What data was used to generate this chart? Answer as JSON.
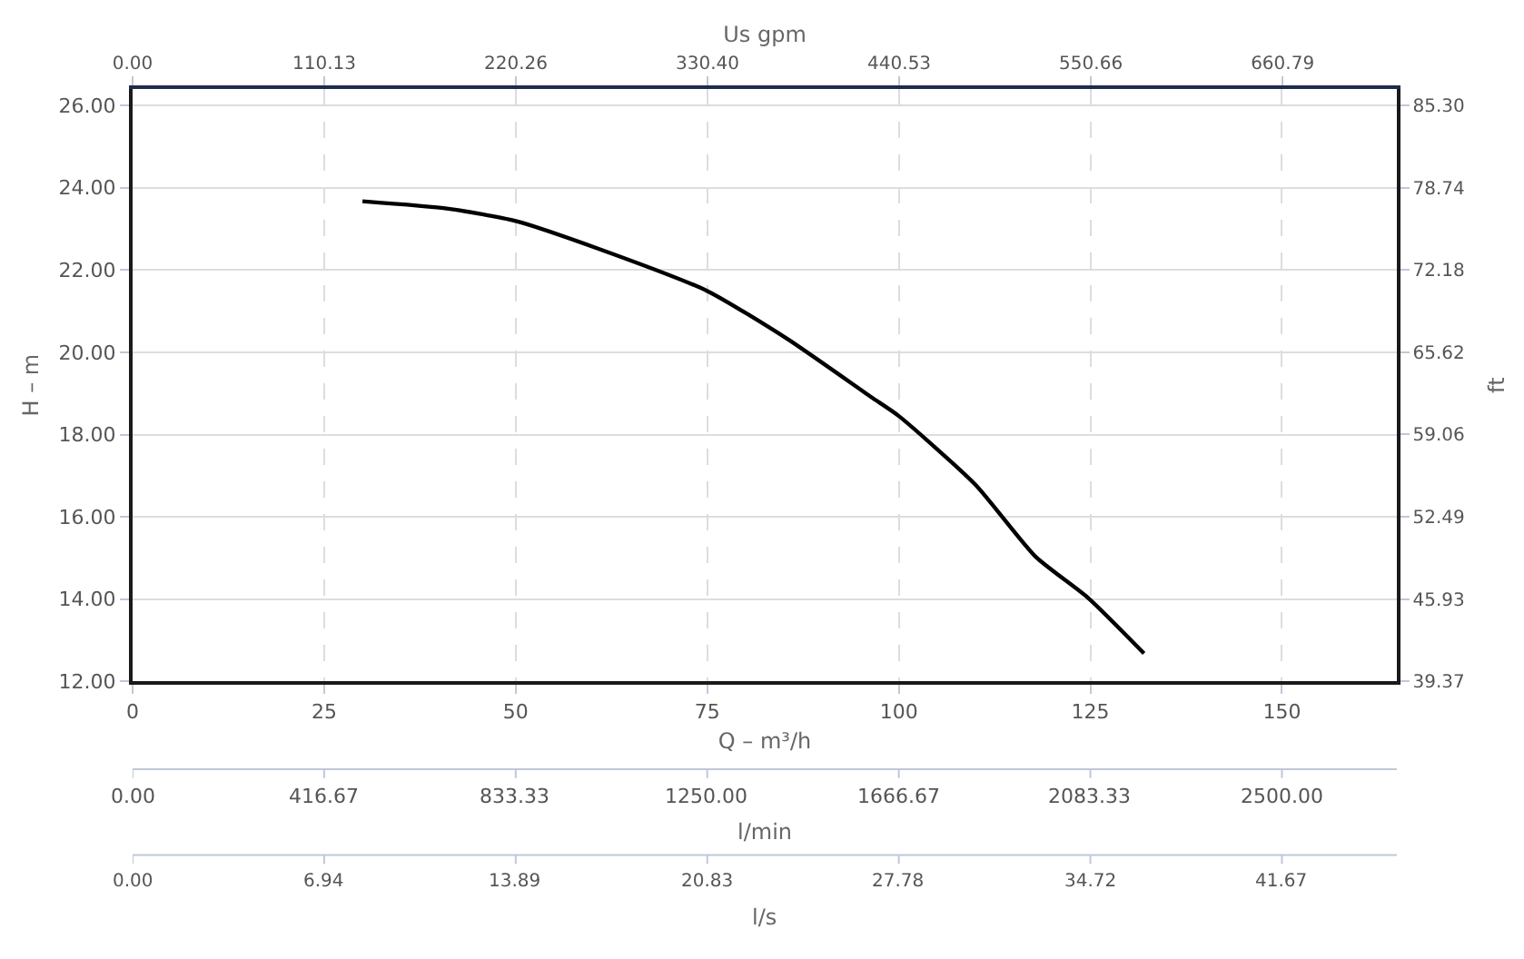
{
  "chart_data": {
    "type": "line",
    "xlabel": "Q – m³/h",
    "ylabel": "H – m",
    "y2label": "ft",
    "x2label": "Us gpm",
    "annotations": [
      "0.00",
      "416.67",
      "833.33",
      "1250.00",
      "1666.67",
      "2083.33",
      "2500.00",
      "l/min",
      "0.00",
      "6.94",
      "13.89",
      "20.83",
      "27.78",
      "34.72",
      "41.67",
      "l/s"
    ],
    "x": [
      30,
      41.2,
      50,
      60.9,
      75,
      85.4,
      96.4,
      100,
      110,
      117.8,
      124.7,
      132
    ],
    "series": [
      {
        "color": "#000000",
        "values": [
          23.67,
          23.49,
          23.19,
          22.51,
          21.49,
          20.33,
          18.91,
          18.45,
          16.78,
          15.04,
          14.03,
          12.68
        ]
      }
    ],
    "xlim": [
      0,
      165
    ],
    "xticks": [
      0,
      25,
      50,
      75,
      100,
      125,
      150
    ],
    "x2lim": [
      0,
      726.48
    ],
    "x2ticks": [
      {
        "value": 0,
        "label": "0.00"
      },
      {
        "value": 110.13,
        "label": "110.13"
      },
      {
        "value": 220.26,
        "label": "220.26"
      },
      {
        "value": 330.4,
        "label": "330.40"
      },
      {
        "value": 440.53,
        "label": "440.53"
      },
      {
        "value": 550.66,
        "label": "550.66"
      },
      {
        "value": 660.79,
        "label": "660.79"
      }
    ],
    "ylim": [
      12,
      26.4
    ],
    "yticks": [
      {
        "value": 12,
        "label": "12.00"
      },
      {
        "value": 14,
        "label": "14.00"
      },
      {
        "value": 16,
        "label": "16.00"
      },
      {
        "value": 18,
        "label": "18.00"
      },
      {
        "value": 20,
        "label": "20.00"
      },
      {
        "value": 22,
        "label": "22.00"
      },
      {
        "value": 24,
        "label": "24.00"
      },
      {
        "value": 26,
        "label": "26.00"
      }
    ],
    "y2lim": [
      39.37,
      86.61
    ],
    "y2ticks": [
      {
        "value": 39.37,
        "label": "39.37"
      },
      {
        "value": 45.93,
        "label": "45.93"
      },
      {
        "value": 52.49,
        "label": "52.49"
      },
      {
        "value": 59.06,
        "label": "59.06"
      },
      {
        "value": 65.62,
        "label": "65.62"
      },
      {
        "value": 72.18,
        "label": "72.18"
      },
      {
        "value": 78.74,
        "label": "78.74"
      },
      {
        "value": 85.3,
        "label": "85.30"
      }
    ],
    "grid": true
  }
}
